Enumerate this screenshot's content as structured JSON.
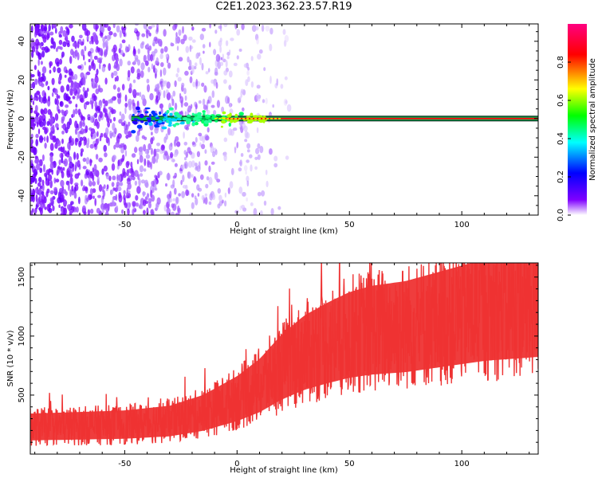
{
  "title": "C2E1.2023.362.23.57.R19",
  "chart_data": [
    {
      "type": "heatmap",
      "xlabel": "Height of straight line (km)",
      "ylabel": "Frequency (Hz)",
      "xlim": [
        -92,
        134
      ],
      "ylim": [
        -50,
        49
      ],
      "x_ticks": [
        -50,
        0,
        50,
        100
      ],
      "y_ticks": [
        -40,
        -20,
        0,
        20,
        40
      ],
      "colorbar": {
        "label": "Normalized spectral amplitude",
        "range": [
          0.0,
          1.0
        ],
        "ticks": [
          "0.0",
          "0.2",
          "0.4",
          "0.6",
          "0.8"
        ],
        "colormap": [
          "#ffffff",
          "#7f00ff",
          "#0000ff",
          "#00ffff",
          "#00ff00",
          "#ffff00",
          "#ff0000",
          "#ff0080"
        ]
      },
      "features": {
        "noise_region_x": [
          -92,
          25
        ],
        "signal_line_freq_hz": 0,
        "signal_onset_km": -47,
        "signal_line_amplitude": 0.95
      }
    },
    {
      "type": "line",
      "xlabel": "Height of straight line (km)",
      "ylabel": "SNR (10 * v/v)",
      "xlim": [
        -92,
        134
      ],
      "ylim": [
        0,
        1620
      ],
      "x_ticks": [
        -50,
        0,
        50,
        100
      ],
      "y_ticks": [
        500,
        1000,
        1500
      ],
      "color": "#ee3333",
      "series": [
        {
          "x": [
            -92,
            -70,
            -50,
            -30,
            -15,
            0,
            10,
            20,
            30,
            40,
            50,
            60,
            75,
            90,
            110,
            134
          ],
          "y": [
            230,
            240,
            250,
            280,
            350,
            470,
            580,
            740,
            860,
            940,
            1010,
            1050,
            1080,
            1140,
            1220,
            1270
          ]
        }
      ]
    }
  ]
}
